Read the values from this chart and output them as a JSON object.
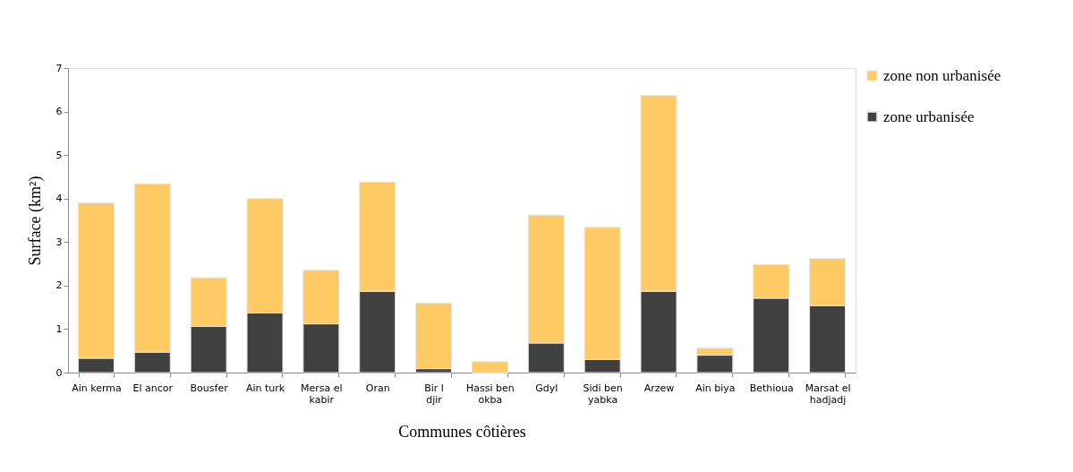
{
  "chart_data": {
    "type": "bar",
    "stacked": true,
    "xlabel": "Communes côtières",
    "ylabel": "Surface (km²)",
    "categories": [
      "Ain kerma",
      "El ancor",
      "Bousfer",
      "Ain turk",
      "Mersa el kabir",
      "Oran",
      "Bir l djir",
      "Hassi ben okba",
      "Gdyl",
      "Sidi ben yabka",
      "Arzew",
      "Ain biya",
      "Bethioua",
      "Marsat el hadjadj"
    ],
    "series": [
      {
        "name": "zone urbanisée",
        "color": "#404040",
        "values": [
          0.33,
          0.47,
          1.06,
          1.37,
          1.12,
          1.87,
          0.09,
          0,
          0.68,
          0.3,
          1.87,
          0.4,
          1.71,
          1.54
        ]
      },
      {
        "name": "zone non urbanisée",
        "color": "#ffca64",
        "values": [
          3.57,
          3.87,
          1.12,
          2.63,
          1.23,
          2.51,
          1.51,
          0.25,
          2.94,
          3.04,
          4.5,
          0.16,
          0.77,
          1.08
        ]
      }
    ],
    "ylim": [
      0,
      7
    ],
    "yticks": [
      0,
      1,
      2,
      3,
      4,
      5,
      6,
      7
    ],
    "grid": false,
    "legend": "right"
  }
}
